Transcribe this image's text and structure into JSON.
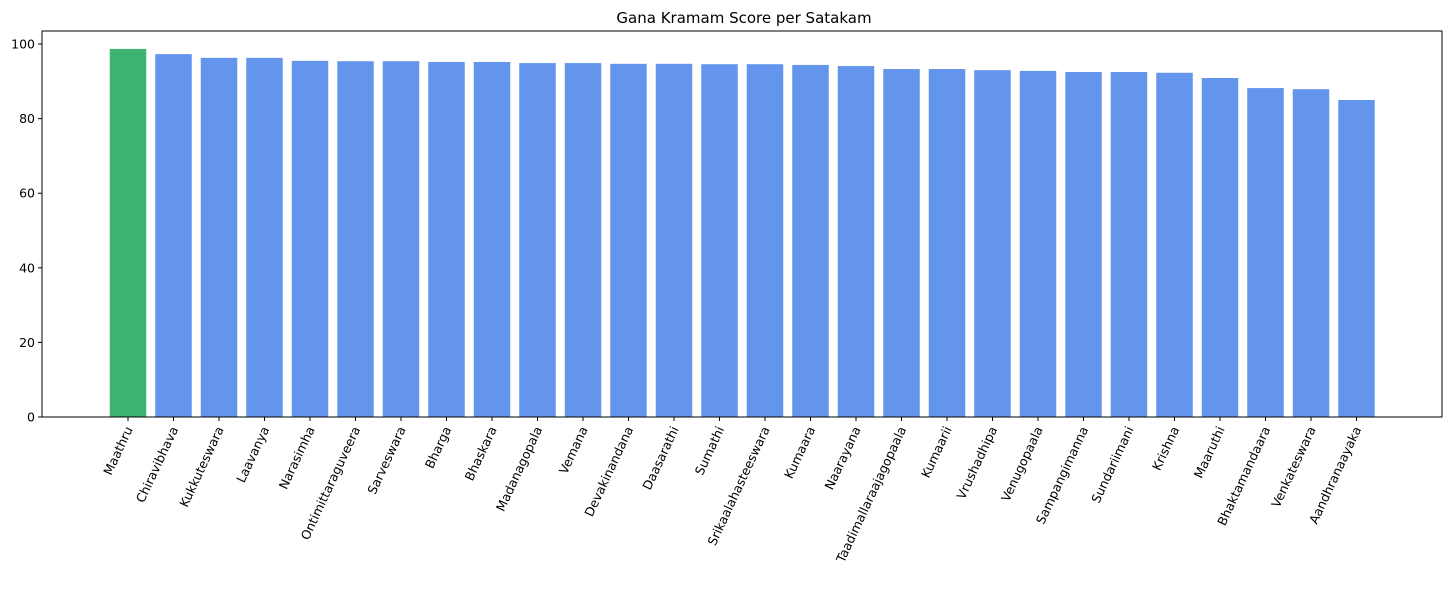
{
  "chart_data": {
    "type": "bar",
    "title": "Gana Kramam Score per Satakam",
    "xlabel": "",
    "ylabel": "",
    "ylim": [
      0,
      103.5
    ],
    "yticks": [
      0,
      20,
      40,
      60,
      80,
      100
    ],
    "grid": false,
    "categories": [
      "Maathru",
      "Chiravibhava",
      "Kukkuteswara",
      "Laavanya",
      "Narasimha",
      "Ontimittaraguveera",
      "Sarveswara",
      "Bharga",
      "Bhaskara",
      "Madanagopala",
      "Vemana",
      "Devakinandana",
      "Daasarathi",
      "Sumathi",
      "Srikaalahasteeswara",
      "Kumaara",
      "Naarayana",
      "Taadimallaraajagopaala",
      "Kumaarii",
      "Vrushadhipa",
      "Venugopaala",
      "Sampangimanna",
      "Sundariimani",
      "Krishna",
      "Maaruthi",
      "Bhaktamandaara",
      "Venkateswara",
      "Aandhranaayaka"
    ],
    "values": [
      98.7,
      97.3,
      96.3,
      96.3,
      95.5,
      95.4,
      95.4,
      95.2,
      95.2,
      94.9,
      94.9,
      94.7,
      94.7,
      94.6,
      94.6,
      94.4,
      94.1,
      93.3,
      93.3,
      93.0,
      92.8,
      92.5,
      92.5,
      92.3,
      90.9,
      88.2,
      87.9,
      85.0
    ],
    "highlight_index": 0,
    "colors": {
      "bar": "#6495ED",
      "highlight": "#3CB371",
      "axis": "#000000"
    }
  }
}
